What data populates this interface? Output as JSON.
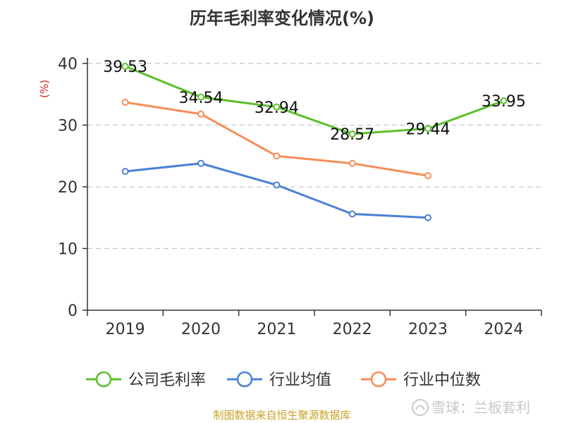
{
  "chart_data": {
    "type": "line",
    "title": "历年毛利率变化情况(%)",
    "ylabel": "(%)",
    "xlabel": "",
    "categories": [
      "2019",
      "2020",
      "2021",
      "2022",
      "2023",
      "2024"
    ],
    "ylim": [
      0,
      40
    ],
    "yticks": [
      0,
      10,
      20,
      30,
      40
    ],
    "grid": true,
    "legend_position": "bottom",
    "series": [
      {
        "name": "公司毛利率",
        "color": "#5cbf2a",
        "values": [
          39.53,
          34.54,
          32.94,
          28.57,
          29.44,
          33.95
        ],
        "labels": [
          "39.53",
          "34.54",
          "32.94",
          "28.57",
          "29.44",
          "33.95"
        ]
      },
      {
        "name": "行业均值",
        "color": "#4a7fd6",
        "values": [
          22.5,
          23.8,
          20.3,
          15.6,
          15.0,
          null
        ]
      },
      {
        "name": "行业中位数",
        "color": "#f58d57",
        "values": [
          33.7,
          31.8,
          25.0,
          23.8,
          21.8,
          null
        ]
      }
    ]
  },
  "source_text": "制图数据来自恒生聚源数据库",
  "source_color": "#c9a227",
  "ylabel_color": "#d62020",
  "watermark": {
    "icon": "snowball-logo-icon",
    "text": "雪球：兰板套利"
  }
}
